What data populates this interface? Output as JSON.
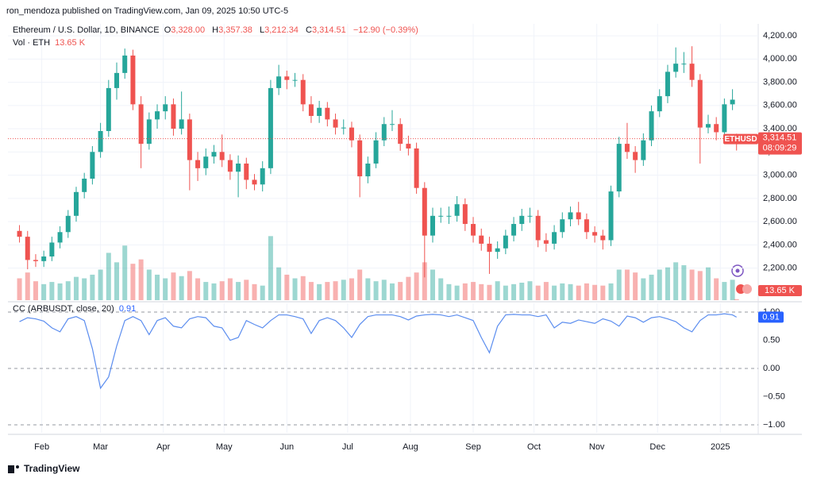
{
  "header": {
    "publisher": "ron_mendoza published on TradingView.com, Jan 09, 2025 10:50 UTC-5"
  },
  "footer": {
    "brand": "TradingView"
  },
  "chart_data": [
    {
      "type": "candlestick",
      "title": "Ethereum / U.S. Dollar, 1D, BINANCE",
      "legend": [
        {
          "key": "O",
          "value": "3,328.00"
        },
        {
          "key": "H",
          "value": "3,357.38"
        },
        {
          "key": "L",
          "value": "3,212.34"
        },
        {
          "key": "C",
          "value": "3,314.51"
        }
      ],
      "change": "−12.90 (−0.39%)",
      "symbol": "ETHUSD",
      "countdown": "08:09:29",
      "last_price": {
        "value": 3314.51,
        "label": "3,314.51"
      },
      "up_color": "#26a69a",
      "down_color": "#ef5350",
      "grid": true,
      "xlim": [
        14.3,
        384.7
      ],
      "xticks": [
        {
          "value": 31,
          "label": "Feb"
        },
        {
          "value": 60,
          "label": "Mar"
        },
        {
          "value": 91,
          "label": "Apr"
        },
        {
          "value": 121,
          "label": "May"
        },
        {
          "value": 152,
          "label": "Jun"
        },
        {
          "value": 182,
          "label": "Jul"
        },
        {
          "value": 213,
          "label": "Aug"
        },
        {
          "value": 244,
          "label": "Sep"
        },
        {
          "value": 274,
          "label": "Oct"
        },
        {
          "value": 305,
          "label": "Nov"
        },
        {
          "value": 335,
          "label": "Dec"
        },
        {
          "value": 366,
          "label": "2025"
        }
      ],
      "ylim": [
        1924,
        4303
      ],
      "yticks": [
        {
          "value": 2200,
          "label": "2,200.00"
        },
        {
          "value": 2400,
          "label": "2,400.00"
        },
        {
          "value": 2600,
          "label": "2,600.00"
        },
        {
          "value": 2800,
          "label": "2,800.00"
        },
        {
          "value": 3000,
          "label": "3,000.00"
        },
        {
          "value": 3200,
          "label": "3,200.00"
        },
        {
          "value": 3400,
          "label": "3,400.00"
        },
        {
          "value": 3600,
          "label": "3,600.00"
        },
        {
          "value": 3800,
          "label": "3,800.00"
        },
        {
          "value": 4000,
          "label": "4,000.00"
        },
        {
          "value": 4200,
          "label": "4,200.00"
        }
      ],
      "x": [
        20,
        24,
        28,
        32,
        36,
        40,
        44,
        48,
        52,
        56,
        60,
        64,
        68,
        72,
        76,
        80,
        84,
        88,
        92,
        96,
        100,
        104,
        108,
        112,
        116,
        120,
        124,
        128,
        132,
        136,
        140,
        144,
        148,
        152,
        156,
        160,
        164,
        168,
        172,
        176,
        180,
        184,
        188,
        192,
        196,
        200,
        204,
        208,
        212,
        216,
        220,
        224,
        228,
        232,
        236,
        240,
        244,
        248,
        252,
        256,
        260,
        264,
        268,
        272,
        276,
        280,
        284,
        288,
        292,
        296,
        300,
        304,
        308,
        312,
        316,
        320,
        324,
        328,
        332,
        336,
        340,
        344,
        348,
        352,
        356,
        360,
        364,
        368,
        372,
        374
      ],
      "open": [
        2520,
        2470,
        2270,
        2260,
        2300,
        2420,
        2510,
        2650,
        2855,
        2970,
        3200,
        3380,
        3750,
        3880,
        4030,
        3610,
        3270,
        3480,
        3550,
        3610,
        3400,
        3480,
        3130,
        3060,
        3160,
        3200,
        3130,
        3030,
        3100,
        2960,
        2920,
        3060,
        3750,
        3850,
        3820,
        3820,
        3610,
        3510,
        3580,
        3480,
        3410,
        3410,
        3300,
        2990,
        3100,
        3300,
        3440,
        3440,
        3270,
        3230,
        2890,
        2480,
        2650,
        2650,
        2650,
        2750,
        2580,
        2480,
        2410,
        2340,
        2370,
        2480,
        2580,
        2650,
        2650,
        2440,
        2410,
        2510,
        2620,
        2680,
        2620,
        2510,
        2480,
        2440,
        2860,
        3270,
        3200,
        3130,
        3300,
        3550,
        3680,
        3890,
        3960,
        3960,
        3820,
        3410,
        3440,
        3370,
        3610,
        3328
      ],
      "high": [
        2570,
        2520,
        2320,
        2350,
        2470,
        2560,
        2700,
        2900,
        3020,
        3250,
        3450,
        3820,
        3970,
        4090,
        4080,
        3680,
        3540,
        3610,
        3680,
        3660,
        3720,
        3530,
        3200,
        3230,
        3260,
        3350,
        3180,
        3170,
        3150,
        3010,
        3120,
        3820,
        3950,
        3900,
        3880,
        3870,
        3680,
        3640,
        3630,
        3530,
        3480,
        3460,
        3350,
        3160,
        3370,
        3500,
        3560,
        3490,
        3340,
        3280,
        2940,
        2720,
        2720,
        2730,
        2820,
        2800,
        2640,
        2540,
        2470,
        2430,
        2530,
        2640,
        2710,
        2720,
        2700,
        2500,
        2570,
        2680,
        2730,
        2770,
        2670,
        2560,
        2530,
        2910,
        3330,
        3450,
        3250,
        3360,
        3600,
        3740,
        3950,
        4100,
        4060,
        4110,
        3870,
        3520,
        3500,
        3660,
        3740,
        3357.38
      ],
      "low": [
        2420,
        2190,
        2210,
        2210,
        2260,
        2370,
        2460,
        2600,
        2800,
        2920,
        3150,
        3330,
        3650,
        3830,
        3560,
        3060,
        3220,
        3400,
        3480,
        3340,
        3350,
        2870,
        2950,
        3000,
        3100,
        3070,
        2960,
        2810,
        2880,
        2870,
        2860,
        3010,
        3690,
        3740,
        3760,
        3550,
        3450,
        3450,
        3420,
        3350,
        3350,
        3240,
        2810,
        2930,
        3060,
        3250,
        3380,
        3210,
        3170,
        2840,
        2120,
        2420,
        2590,
        2580,
        2600,
        2520,
        2420,
        2350,
        2150,
        2280,
        2320,
        2430,
        2520,
        2590,
        2380,
        2340,
        2360,
        2460,
        2560,
        2570,
        2450,
        2420,
        2360,
        2390,
        2810,
        3140,
        3020,
        3080,
        3250,
        3500,
        3620,
        3840,
        3880,
        3760,
        3100,
        3360,
        3300,
        3320,
        3560,
        3212.34
      ],
      "close": [
        2470,
        2270,
        2260,
        2300,
        2420,
        2510,
        2650,
        2855,
        2970,
        3200,
        3380,
        3750,
        3880,
        4030,
        3610,
        3270,
        3480,
        3550,
        3610,
        3400,
        3480,
        3130,
        3060,
        3160,
        3200,
        3130,
        3030,
        3100,
        2960,
        2920,
        3060,
        3750,
        3850,
        3820,
        3820,
        3610,
        3510,
        3580,
        3480,
        3410,
        3410,
        3300,
        2990,
        3100,
        3300,
        3440,
        3440,
        3270,
        3230,
        2890,
        2480,
        2650,
        2650,
        2650,
        2750,
        2580,
        2480,
        2410,
        2340,
        2370,
        2480,
        2580,
        2650,
        2650,
        2440,
        2410,
        2510,
        2620,
        2680,
        2620,
        2510,
        2480,
        2440,
        2860,
        3270,
        3200,
        3130,
        3300,
        3550,
        3680,
        3890,
        3960,
        3960,
        3820,
        3410,
        3440,
        3370,
        3610,
        3650,
        3314.51
      ]
    },
    {
      "type": "bar",
      "title": "Vol · ETH",
      "last_value_label": "13.65 K",
      "ylim": [
        0,
        1200000
      ],
      "x": [
        20,
        24,
        28,
        32,
        36,
        40,
        44,
        48,
        52,
        56,
        60,
        64,
        68,
        72,
        76,
        80,
        84,
        88,
        92,
        96,
        100,
        104,
        108,
        112,
        116,
        120,
        124,
        128,
        132,
        136,
        140,
        144,
        148,
        152,
        156,
        160,
        164,
        168,
        172,
        176,
        180,
        184,
        188,
        192,
        196,
        200,
        204,
        208,
        212,
        216,
        220,
        224,
        228,
        232,
        236,
        240,
        244,
        248,
        252,
        256,
        260,
        264,
        268,
        272,
        276,
        280,
        284,
        288,
        292,
        296,
        300,
        304,
        308,
        312,
        316,
        320,
        324,
        328,
        332,
        336,
        340,
        344,
        348,
        352,
        356,
        360,
        364,
        368,
        372,
        374
      ],
      "values": [
        300000,
        380000,
        260000,
        220000,
        250000,
        230000,
        260000,
        320000,
        300000,
        350000,
        420000,
        650000,
        520000,
        750000,
        500000,
        560000,
        420000,
        350000,
        300000,
        380000,
        330000,
        400000,
        300000,
        250000,
        230000,
        260000,
        300000,
        250000,
        280000,
        220000,
        200000,
        880000,
        450000,
        350000,
        300000,
        330000,
        250000,
        220000,
        250000,
        260000,
        280000,
        300000,
        420000,
        300000,
        260000,
        280000,
        230000,
        250000,
        320000,
        380000,
        520000,
        420000,
        300000,
        220000,
        200000,
        230000,
        250000,
        220000,
        210000,
        260000,
        200000,
        220000,
        240000,
        260000,
        200000,
        250000,
        200000,
        230000,
        220000,
        200000,
        230000,
        210000,
        200000,
        230000,
        420000,
        420000,
        380000,
        300000,
        350000,
        420000,
        450000,
        520000,
        480000,
        420000,
        400000,
        450000,
        300000,
        250000,
        280000,
        13650
      ]
    },
    {
      "type": "line",
      "title": "CC (ARBUSDT, close, 20)",
      "color": "#5b8def",
      "badge_color": "#2962ff",
      "ylim": [
        -1.14,
        1.155
      ],
      "yticks": [
        {
          "value": 1,
          "label": "1.00"
        },
        {
          "value": 0.5,
          "label": "0.50"
        },
        {
          "value": 0,
          "label": "0.00"
        },
        {
          "value": -0.5,
          "label": "−0.50"
        },
        {
          "value": -1,
          "label": "−1.00"
        }
      ],
      "hlines": [
        1,
        0,
        -1
      ],
      "x": [
        20,
        24,
        28,
        32,
        36,
        40,
        44,
        48,
        52,
        56,
        60,
        64,
        68,
        72,
        76,
        80,
        84,
        88,
        92,
        96,
        100,
        104,
        108,
        112,
        116,
        120,
        124,
        128,
        132,
        136,
        140,
        144,
        148,
        152,
        156,
        160,
        164,
        168,
        172,
        176,
        180,
        184,
        188,
        192,
        196,
        200,
        204,
        208,
        212,
        216,
        220,
        224,
        228,
        232,
        236,
        240,
        244,
        248,
        252,
        256,
        260,
        264,
        268,
        272,
        276,
        280,
        284,
        288,
        292,
        296,
        300,
        304,
        308,
        312,
        316,
        320,
        324,
        328,
        332,
        336,
        340,
        344,
        348,
        352,
        356,
        360,
        364,
        368,
        372,
        374
      ],
      "values": [
        0.83,
        0.9,
        0.88,
        0.84,
        0.72,
        0.65,
        0.88,
        0.92,
        0.85,
        0.35,
        -0.35,
        -0.15,
        0.4,
        0.85,
        0.92,
        0.85,
        0.6,
        0.85,
        0.9,
        0.75,
        0.72,
        0.88,
        0.92,
        0.9,
        0.75,
        0.72,
        0.5,
        0.55,
        0.85,
        0.78,
        0.72,
        0.85,
        0.95,
        0.95,
        0.92,
        0.88,
        0.62,
        0.85,
        0.9,
        0.85,
        0.72,
        0.55,
        0.78,
        0.92,
        0.95,
        0.95,
        0.95,
        0.92,
        0.86,
        0.93,
        0.95,
        0.96,
        0.95,
        0.92,
        0.95,
        0.9,
        0.85,
        0.55,
        0.28,
        0.75,
        0.95,
        0.96,
        0.95,
        0.95,
        0.92,
        0.95,
        0.72,
        0.82,
        0.8,
        0.86,
        0.83,
        0.8,
        0.88,
        0.84,
        0.75,
        0.93,
        0.9,
        0.82,
        0.9,
        0.92,
        0.88,
        0.83,
        0.72,
        0.65,
        0.85,
        0.95,
        0.95,
        0.97,
        0.95,
        0.91
      ]
    }
  ]
}
